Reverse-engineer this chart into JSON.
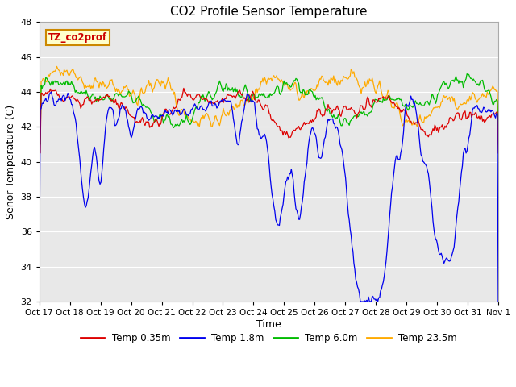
{
  "title": "CO2 Profile Sensor Temperature",
  "xlabel": "Time",
  "ylabel": "Senor Temperature (C)",
  "ylim": [
    32,
    48
  ],
  "yticks": [
    32,
    34,
    36,
    38,
    40,
    42,
    44,
    46,
    48
  ],
  "x_labels": [
    "Oct 17",
    "Oct 18",
    "Oct 19",
    "Oct 20",
    "Oct 21",
    "Oct 22",
    "Oct 23",
    "Oct 24",
    "Oct 25",
    "Oct 26",
    "Oct 27",
    "Oct 28",
    "Oct 29",
    "Oct 30",
    "Oct 31",
    "Nov 1"
  ],
  "annotation_text": "TZ_co2prof",
  "annotation_box_color": "#ffffcc",
  "annotation_text_color": "#cc0000",
  "annotation_border_color": "#cc8800",
  "legend": [
    {
      "label": "Temp 0.35m",
      "color": "#dd0000"
    },
    {
      "label": "Temp 1.8m",
      "color": "#0000ee"
    },
    {
      "label": "Temp 6.0m",
      "color": "#00bb00"
    },
    {
      "label": "Temp 23.5m",
      "color": "#ffaa00"
    }
  ],
  "fig_bg_color": "#ffffff",
  "plot_bg_color": "#e8e8e8",
  "n_points": 500,
  "seed": 7
}
